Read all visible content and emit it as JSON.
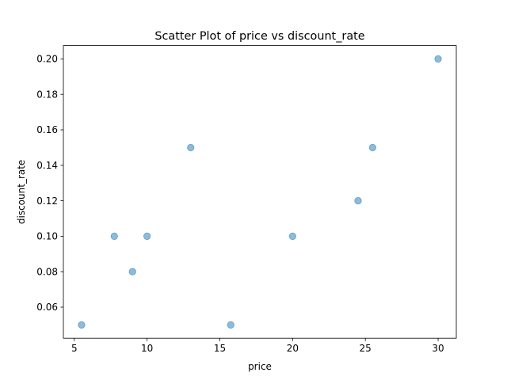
{
  "chart_data": {
    "type": "scatter",
    "title": "Scatter Plot of price vs discount_rate",
    "xlabel": "price",
    "ylabel": "discount_rate",
    "xlim": [
      4.25,
      31.25
    ],
    "ylim": [
      0.0425,
      0.2075
    ],
    "xticks": [
      5,
      10,
      15,
      20,
      25,
      30
    ],
    "xtick_labels": [
      "5",
      "10",
      "15",
      "20",
      "25",
      "30"
    ],
    "yticks": [
      0.06,
      0.08,
      0.1,
      0.12,
      0.14,
      0.16,
      0.18,
      0.2
    ],
    "ytick_labels": [
      "0.06",
      "0.08",
      "0.10",
      "0.12",
      "0.14",
      "0.16",
      "0.18",
      "0.20"
    ],
    "grid": false,
    "marker_color": "#1f77b4",
    "marker_alpha": 0.5,
    "points": [
      {
        "x": 5.5,
        "y": 0.05
      },
      {
        "x": 7.75,
        "y": 0.1
      },
      {
        "x": 9.0,
        "y": 0.08
      },
      {
        "x": 10.0,
        "y": 0.1
      },
      {
        "x": 13.0,
        "y": 0.15
      },
      {
        "x": 15.75,
        "y": 0.05
      },
      {
        "x": 20.0,
        "y": 0.1
      },
      {
        "x": 24.5,
        "y": 0.12
      },
      {
        "x": 25.5,
        "y": 0.15
      },
      {
        "x": 30.0,
        "y": 0.2
      }
    ]
  }
}
